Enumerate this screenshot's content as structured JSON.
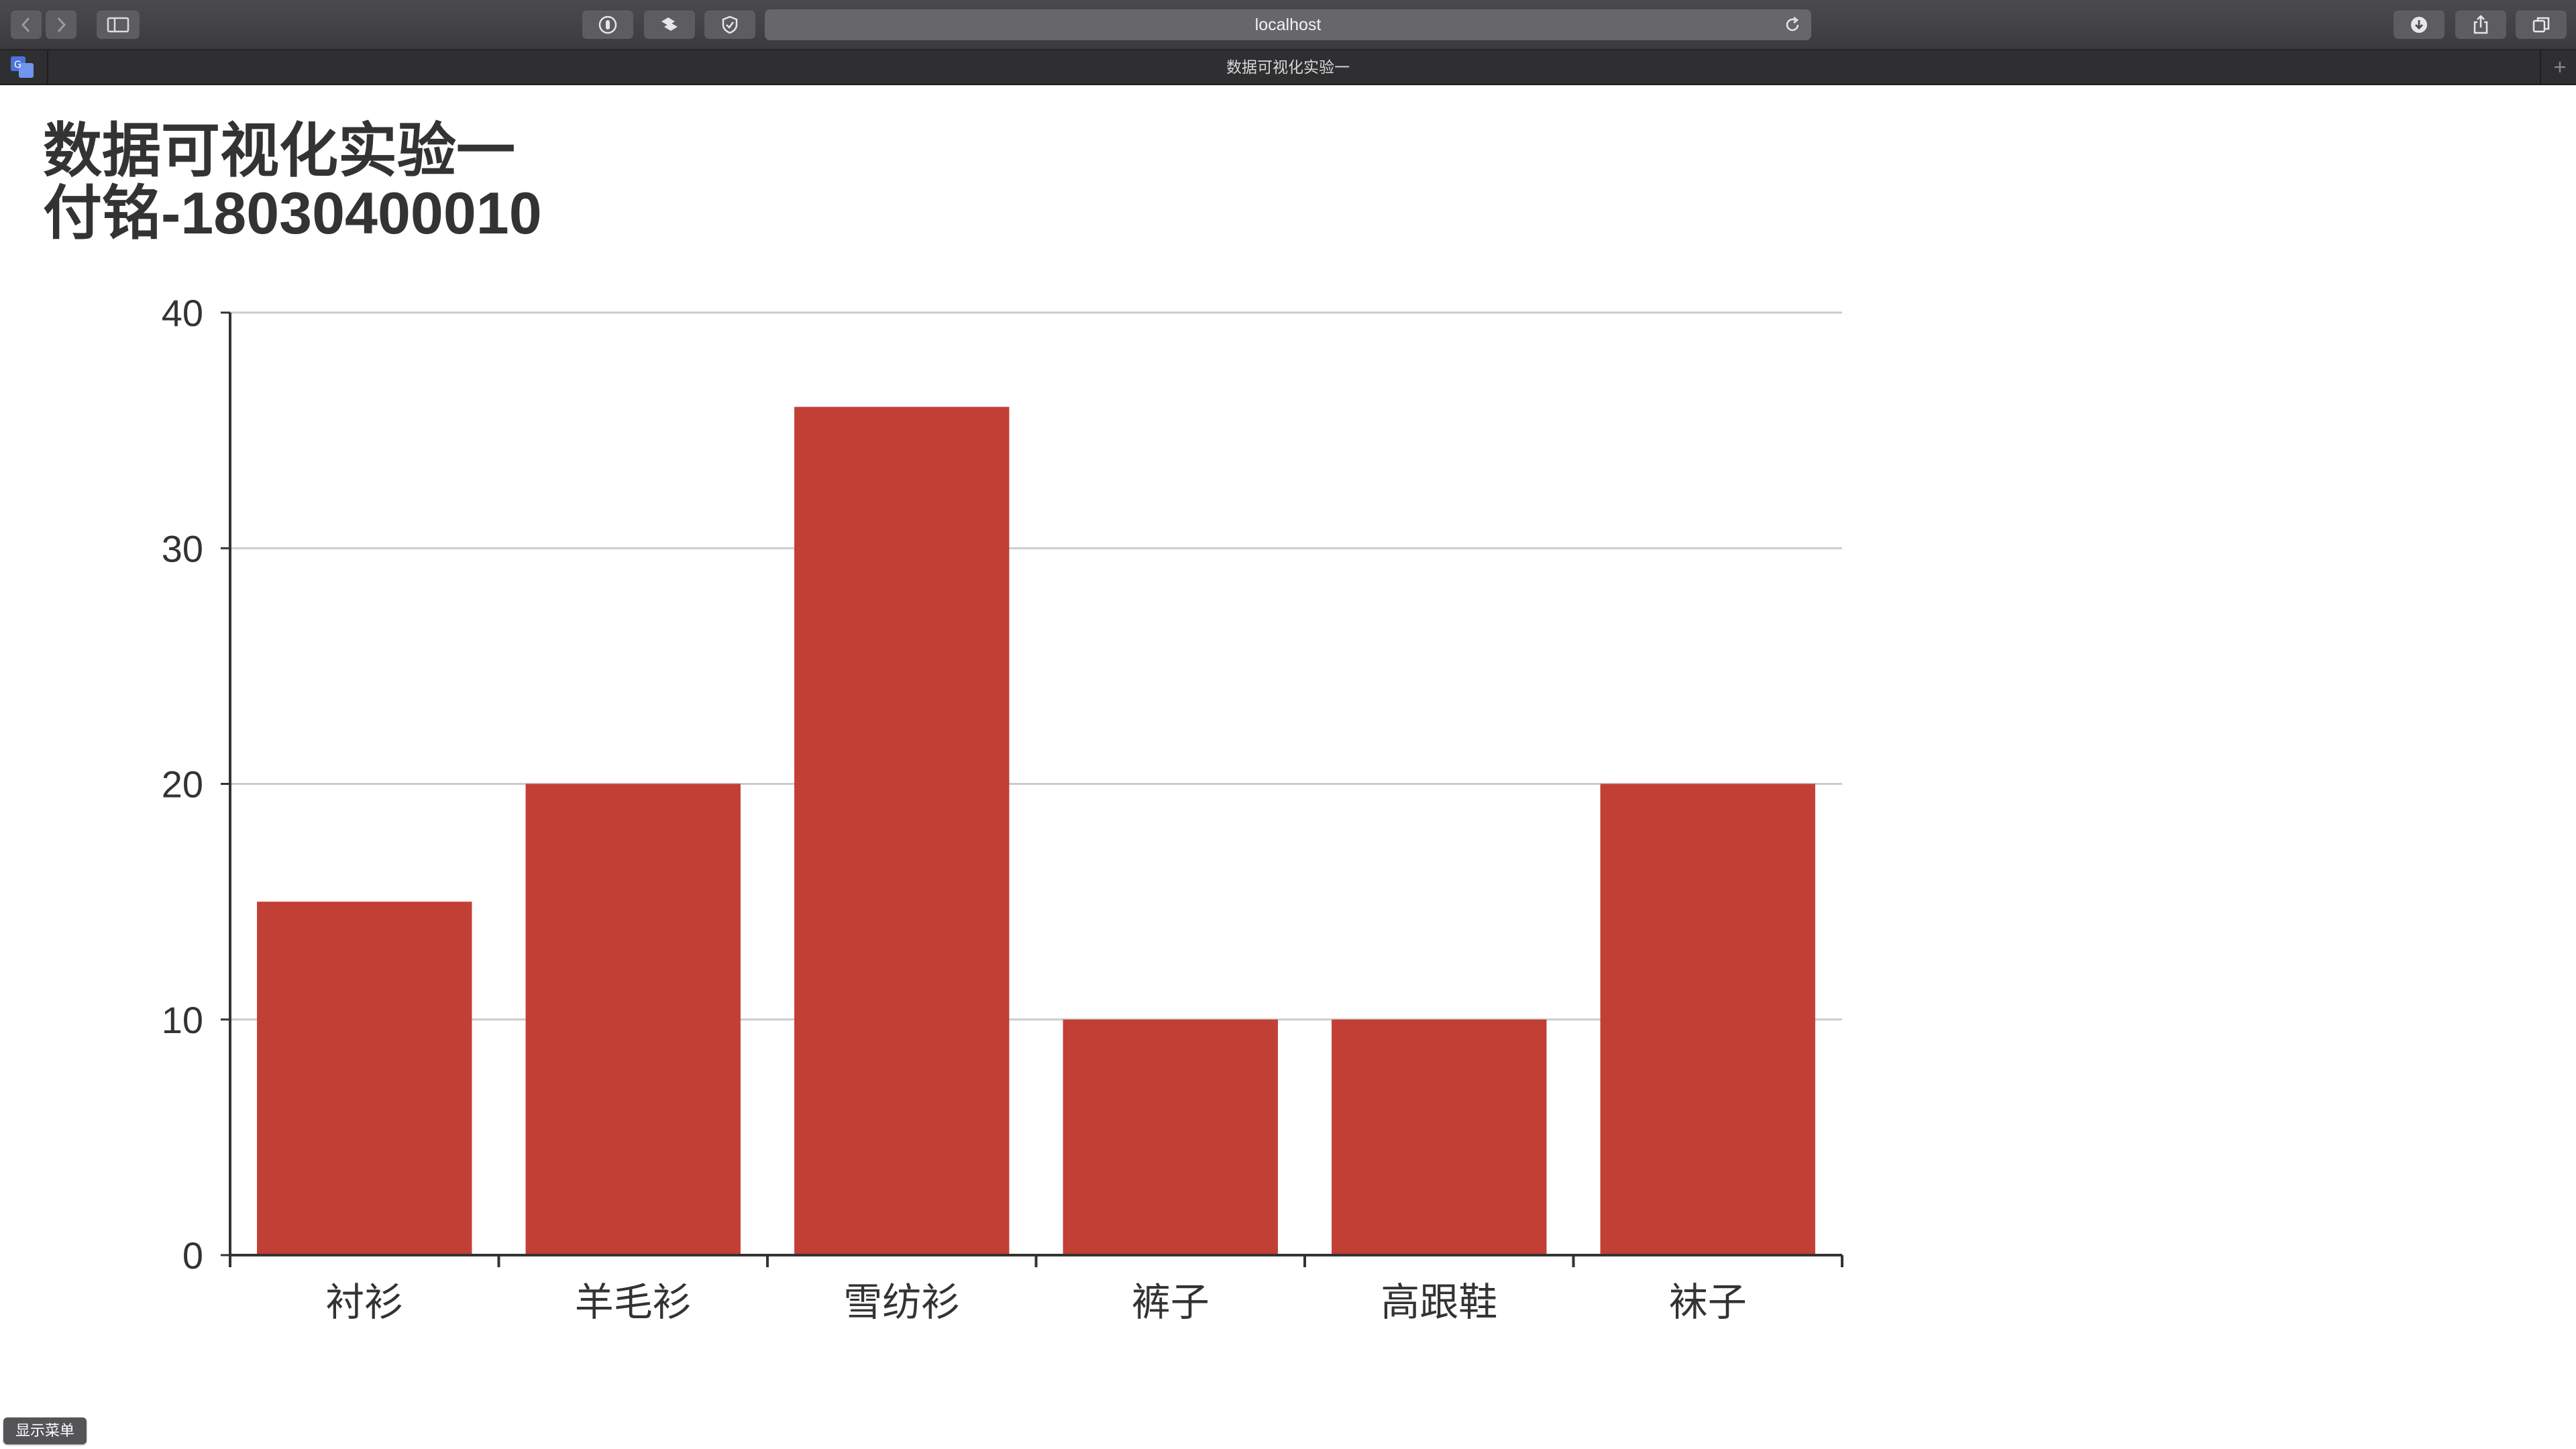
{
  "browser": {
    "url": "localhost",
    "tab_title": "数据可视化实验一"
  },
  "page": {
    "heading_line1": "数据可视化实验一",
    "heading_line2": "付铭-18030400010"
  },
  "menu_toggle_label": "显示菜单",
  "colors": {
    "bar": "#c23f35",
    "axis": "#333333",
    "grid": "#cccccc",
    "text": "#333333"
  },
  "chart_data": {
    "type": "bar",
    "categories": [
      "衬衫",
      "羊毛衫",
      "雪纺衫",
      "裤子",
      "高跟鞋",
      "袜子"
    ],
    "values": [
      15,
      20,
      36,
      10,
      10,
      20
    ],
    "ylim": [
      0,
      40
    ],
    "yticks": [
      0,
      10,
      20,
      30,
      40
    ],
    "grid": true
  }
}
